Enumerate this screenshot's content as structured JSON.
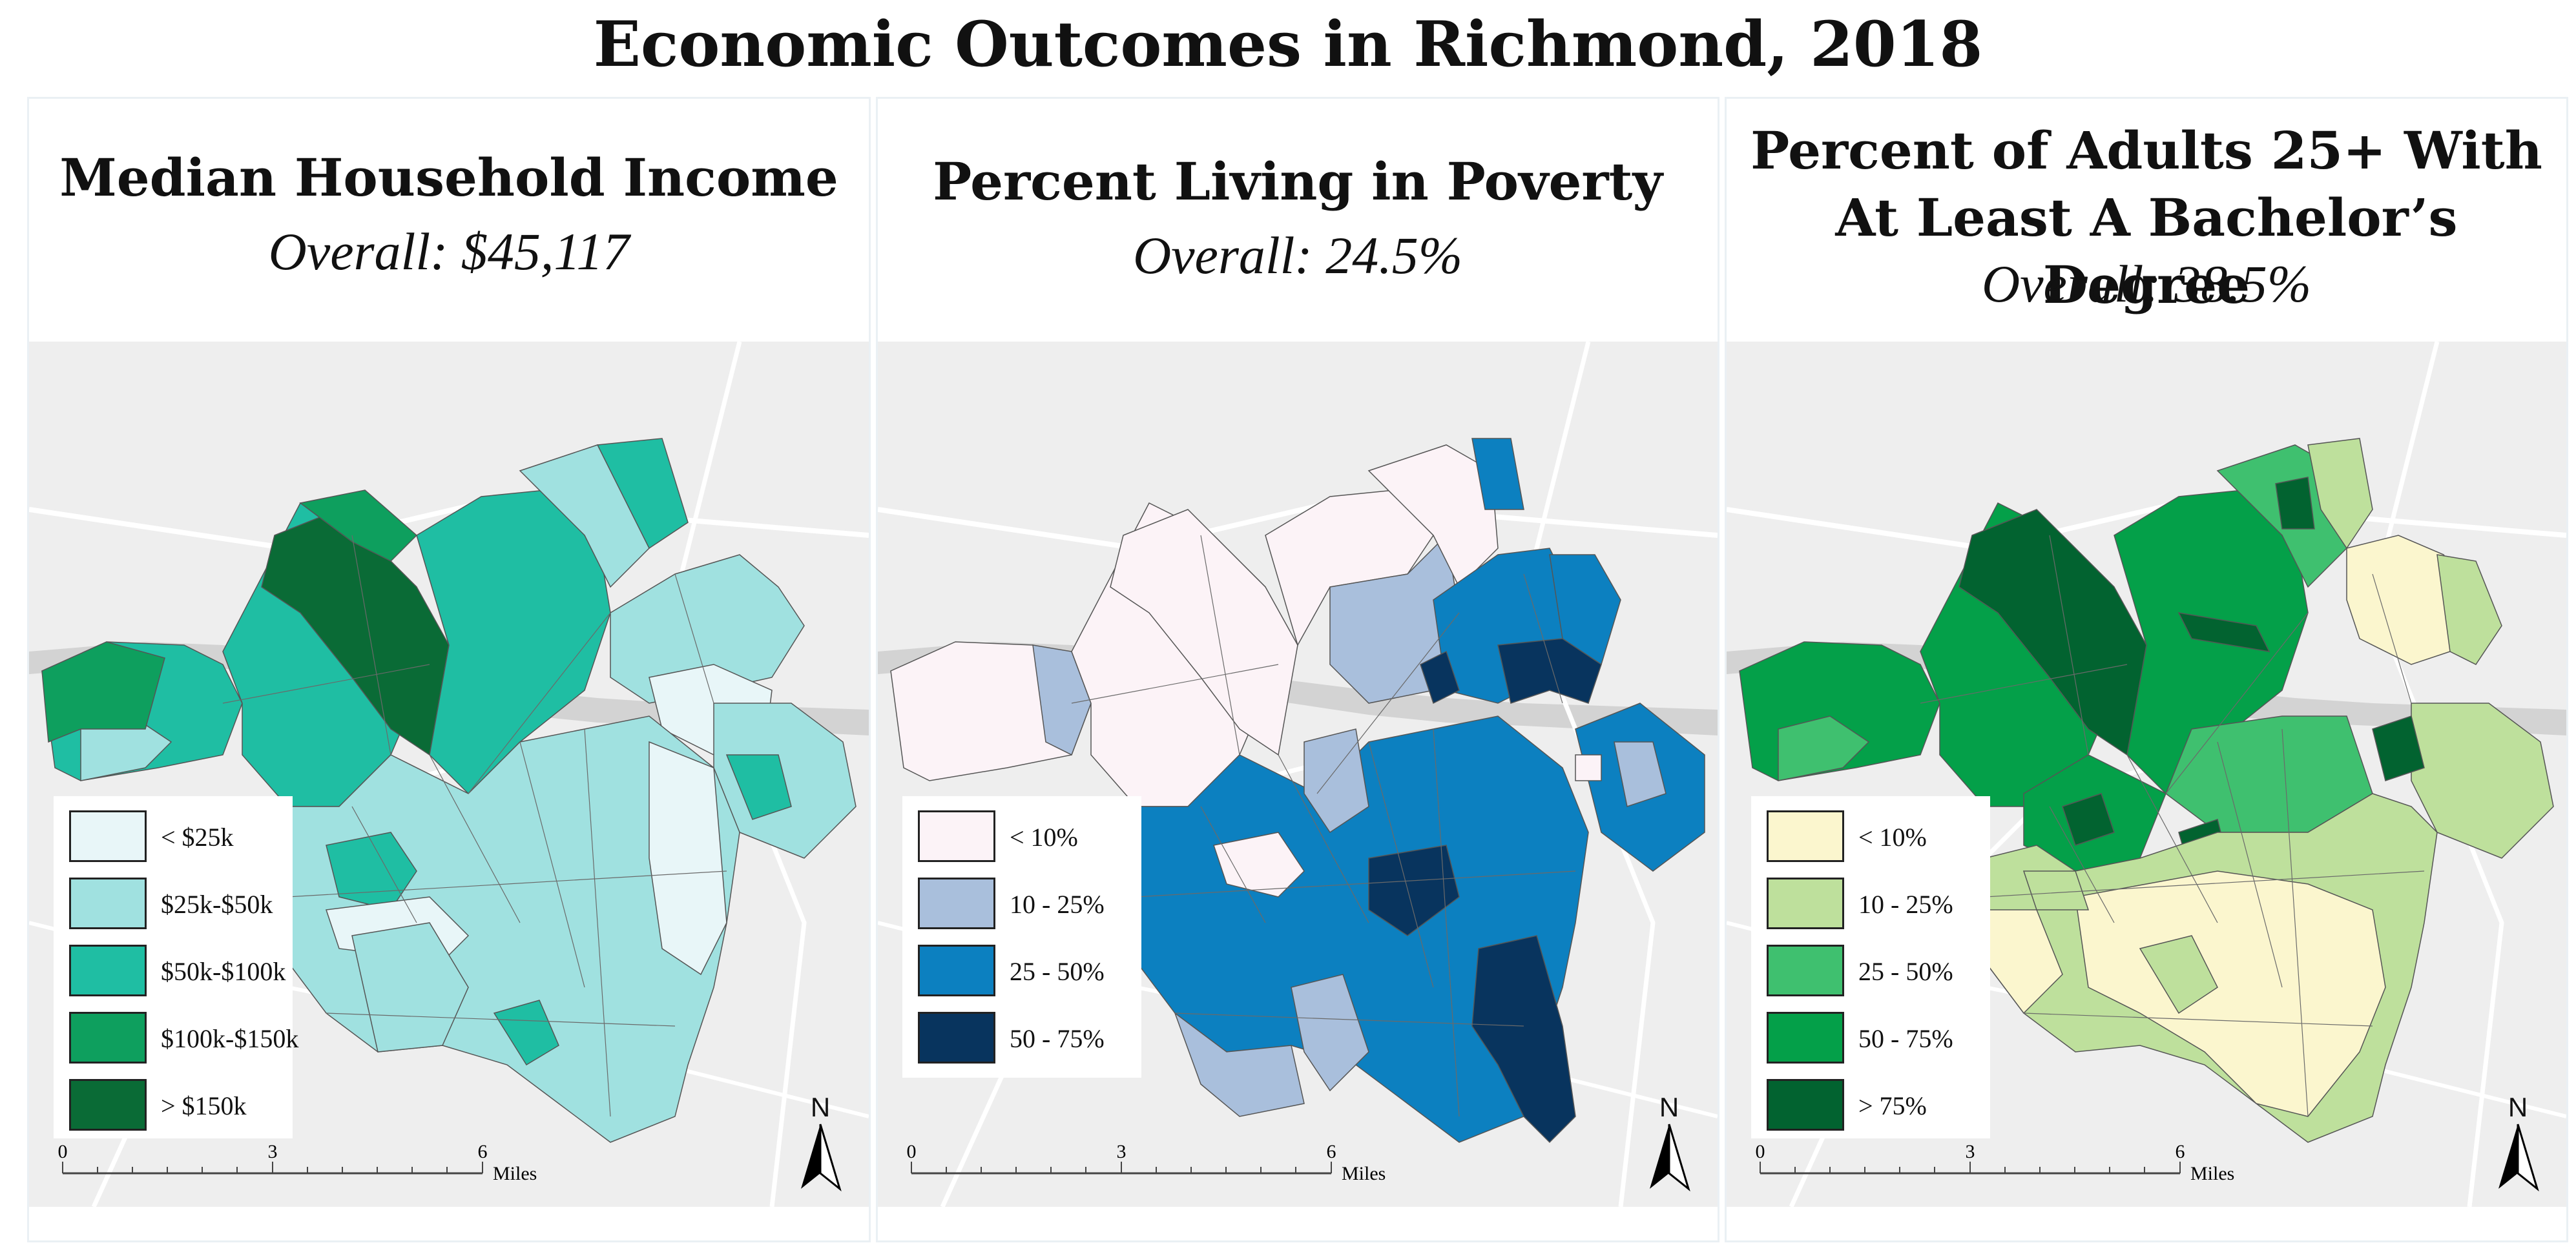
{
  "title": "Economic Outcomes in Richmond, 2018",
  "panels": [
    {
      "title_lines": [
        "Median Household Income"
      ],
      "overall": "Overall: $45,117",
      "legend": [
        {
          "label": "< $25k",
          "color": "#e8f6f8"
        },
        {
          "label": "$25k-$50k",
          "color": "#a0e1e0"
        },
        {
          "label": "$50k-$100k",
          "color": "#1fbea3"
        },
        {
          "label": "$100k-$150k",
          "color": "#0e9f5e"
        },
        {
          "label": "> $150k",
          "color": "#0a6b36"
        }
      ]
    },
    {
      "title_lines": [
        "Percent Living in Poverty"
      ],
      "overall": "Overall: 24.5%",
      "legend": [
        {
          "label": "< 10%",
          "color": "#fcf3f7"
        },
        {
          "label": "10 - 25%",
          "color": "#a9bfdc"
        },
        {
          "label": "25 - 50%",
          "color": "#0c80c0"
        },
        {
          "label": "50 - 75%",
          "color": "#08345e"
        }
      ]
    },
    {
      "title_lines": [
        "Percent of Adults 25+ With",
        "At Least A Bachelor’s Degree"
      ],
      "overall": "Overall: 38.5%",
      "legend": [
        {
          "label": "< 10%",
          "color": "#fbf6ce"
        },
        {
          "label": "10 - 25%",
          "color": "#bee09c"
        },
        {
          "label": "25 - 50%",
          "color": "#3fc06f"
        },
        {
          "label": "50 - 75%",
          "color": "#04a049"
        },
        {
          "label": "> 75%",
          "color": "#026330"
        }
      ]
    }
  ],
  "scale": {
    "ticks": [
      "0",
      "3",
      "6"
    ],
    "unit": "Miles"
  },
  "north_label": "N"
}
